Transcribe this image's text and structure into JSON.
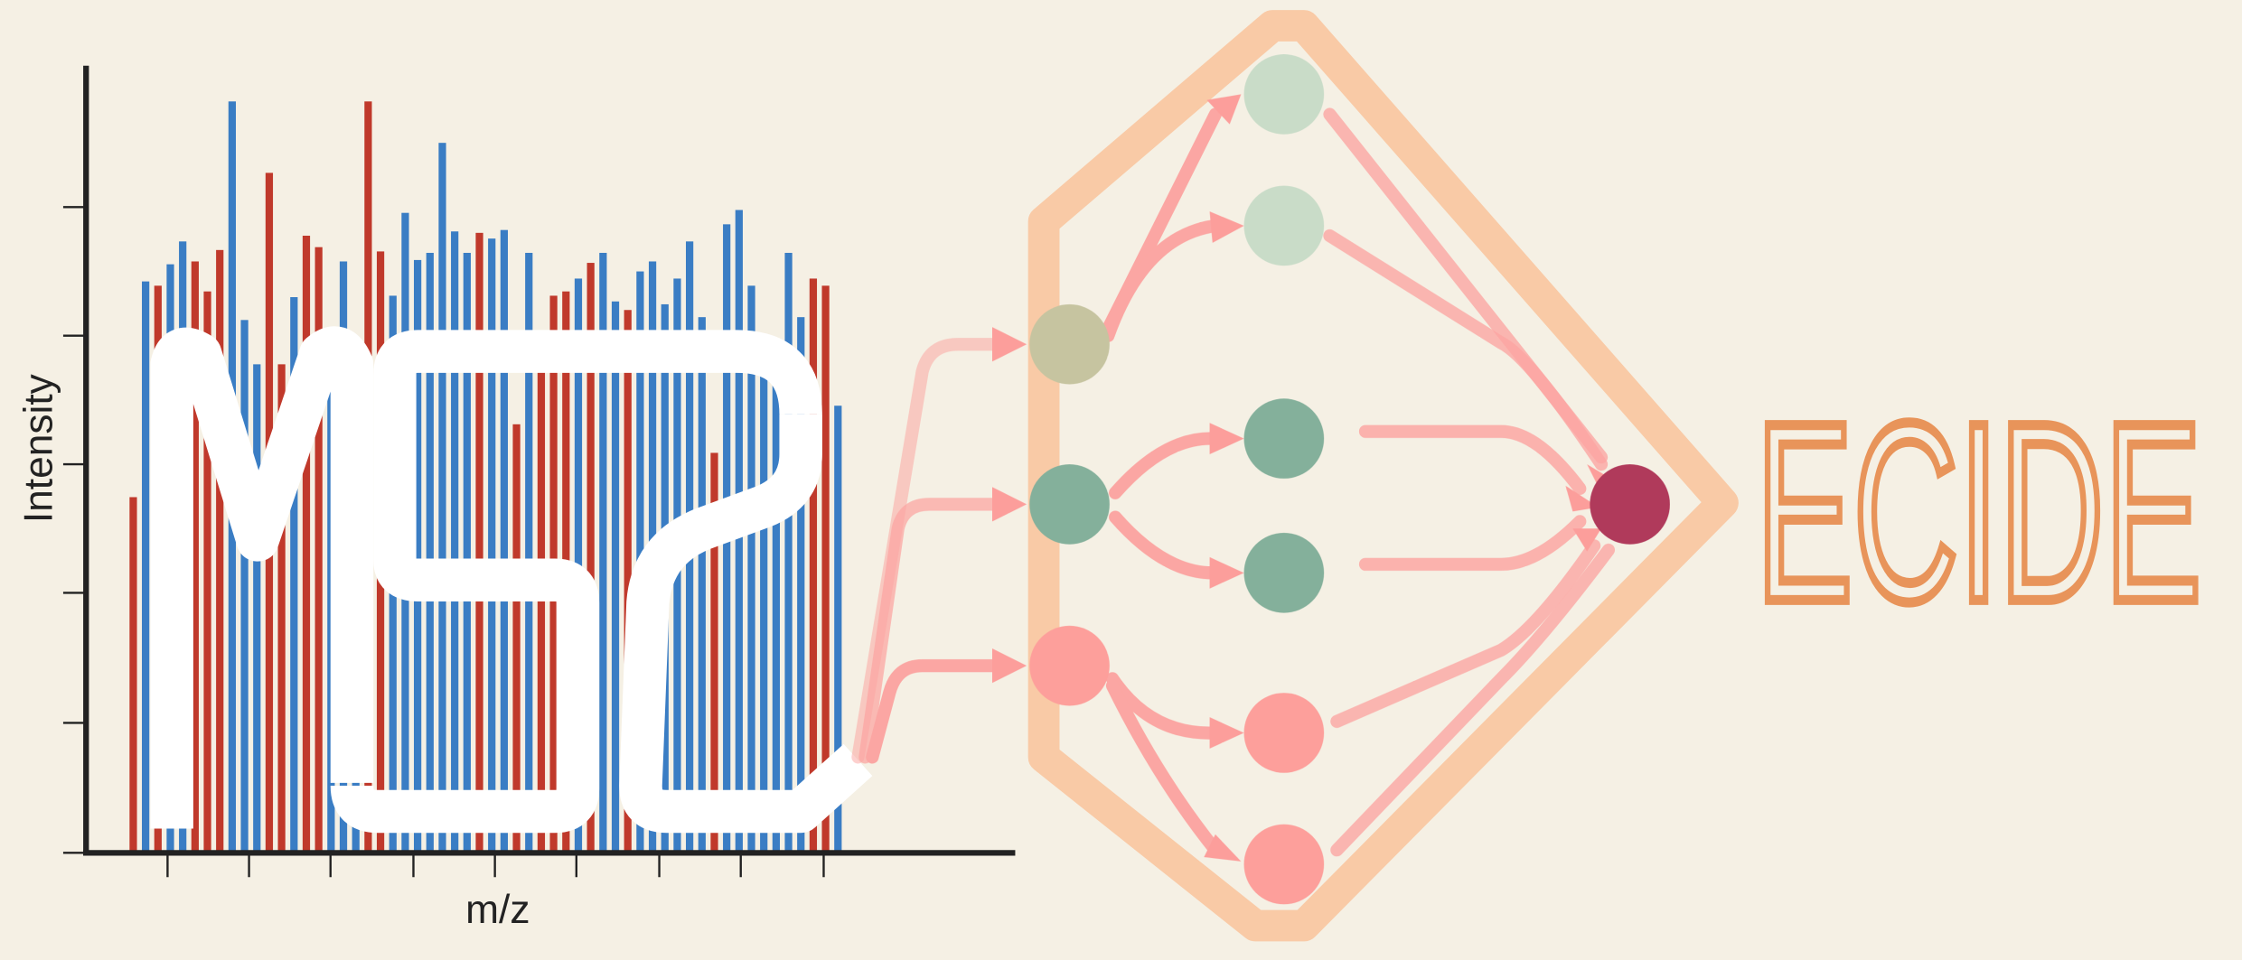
{
  "plot": {
    "y_label": "Intensity",
    "x_label": "m/z",
    "bars": [
      249,
      400,
      397,
      412,
      428,
      414,
      393,
      422,
      526,
      373,
      342,
      476,
      342,
      389,
      432,
      424,
      357,
      414,
      300,
      526,
      421,
      390,
      448,
      415,
      420,
      497,
      435,
      420,
      434,
      430,
      436,
      300,
      420,
      365,
      390,
      393,
      402,
      413,
      420,
      386,
      380,
      407,
      414,
      384,
      402,
      428,
      375,
      280,
      440,
      450,
      397,
      360,
      356,
      420,
      375,
      402,
      397,
      313
    ],
    "colors": [
      "r",
      "b",
      "r",
      "b",
      "b",
      "r",
      "r",
      "r",
      "b",
      "b",
      "b",
      "r",
      "r",
      "b",
      "r",
      "r",
      "b",
      "b",
      "b",
      "r",
      "r",
      "b",
      "b",
      "b",
      "b",
      "b",
      "b",
      "b",
      "r",
      "b",
      "b",
      "r",
      "b",
      "r",
      "r",
      "r",
      "b",
      "r",
      "b",
      "b",
      "r",
      "b",
      "b",
      "b",
      "b",
      "b",
      "b",
      "r",
      "b",
      "b",
      "b",
      "b",
      "b",
      "b",
      "b",
      "r",
      "r",
      "b"
    ]
  },
  "wordmark": "ECIDE"
}
